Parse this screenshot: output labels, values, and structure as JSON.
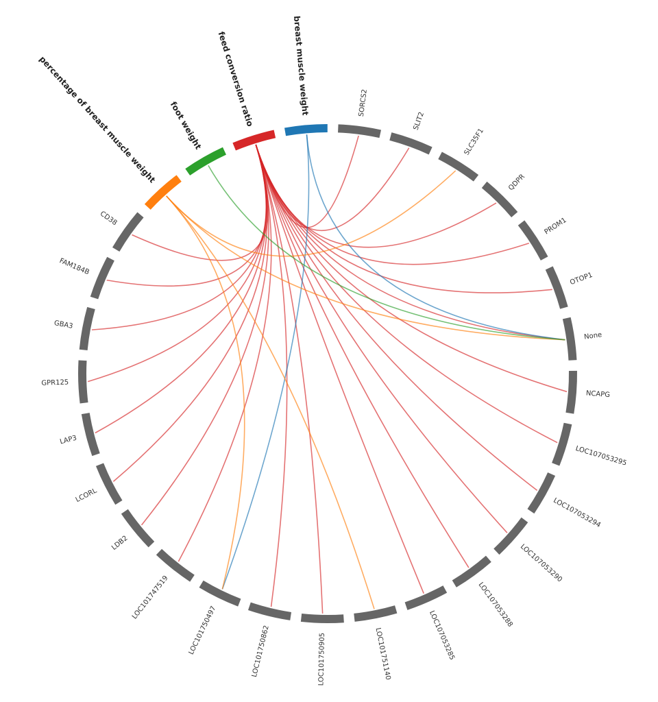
{
  "nodes": [
    {
      "label": "breast muscle weight",
      "color": "#1f77b4",
      "trait": true
    },
    {
      "label": "SORCS2",
      "color": "#666666"
    },
    {
      "label": "SLIT2",
      "color": "#666666"
    },
    {
      "label": "SLC35F1",
      "color": "#666666"
    },
    {
      "label": "QDPR",
      "color": "#666666"
    },
    {
      "label": "PROM1",
      "color": "#666666"
    },
    {
      "label": "OTOP1",
      "color": "#666666"
    },
    {
      "label": "None",
      "color": "#666666"
    },
    {
      "label": "NCAPG",
      "color": "#666666"
    },
    {
      "label": "LOC107053295",
      "color": "#666666"
    },
    {
      "label": "LOC107053294",
      "color": "#666666"
    },
    {
      "label": "LOC107053290",
      "color": "#666666"
    },
    {
      "label": "LOC107053288",
      "color": "#666666"
    },
    {
      "label": "LOC107053285",
      "color": "#666666"
    },
    {
      "label": "LOC101751140",
      "color": "#666666"
    },
    {
      "label": "LOC101750905",
      "color": "#666666"
    },
    {
      "label": "LOC101750862",
      "color": "#666666"
    },
    {
      "label": "LOC101750497",
      "color": "#666666"
    },
    {
      "label": "LOC101747519",
      "color": "#666666"
    },
    {
      "label": "LDB2",
      "color": "#666666"
    },
    {
      "label": "LCORL",
      "color": "#666666"
    },
    {
      "label": "LAP3",
      "color": "#666666"
    },
    {
      "label": "GPR125",
      "color": "#666666"
    },
    {
      "label": "GBA3",
      "color": "#666666"
    },
    {
      "label": "FAM184B",
      "color": "#666666"
    },
    {
      "label": "CD38",
      "color": "#666666"
    },
    {
      "label": "percentage of breast muscle weight",
      "color": "#ff7f0e",
      "trait": true
    },
    {
      "label": "foot weight",
      "color": "#2ca02c",
      "trait": true
    },
    {
      "label": "feed conversion ratio",
      "color": "#d62728",
      "trait": true
    }
  ],
  "links": [
    {
      "source": "feed conversion ratio",
      "target": "SORCS2"
    },
    {
      "source": "feed conversion ratio",
      "target": "SLIT2"
    },
    {
      "source": "feed conversion ratio",
      "target": "QDPR"
    },
    {
      "source": "feed conversion ratio",
      "target": "PROM1"
    },
    {
      "source": "feed conversion ratio",
      "target": "OTOP1"
    },
    {
      "source": "feed conversion ratio",
      "target": "None"
    },
    {
      "source": "feed conversion ratio",
      "target": "NCAPG"
    },
    {
      "source": "feed conversion ratio",
      "target": "LOC107053295"
    },
    {
      "source": "feed conversion ratio",
      "target": "LOC107053294"
    },
    {
      "source": "feed conversion ratio",
      "target": "LOC107053290"
    },
    {
      "source": "feed conversion ratio",
      "target": "LOC107053288"
    },
    {
      "source": "feed conversion ratio",
      "target": "LOC107053285"
    },
    {
      "source": "feed conversion ratio",
      "target": "LOC101750905"
    },
    {
      "source": "feed conversion ratio",
      "target": "LOC101750862"
    },
    {
      "source": "feed conversion ratio",
      "target": "LOC101747519"
    },
    {
      "source": "feed conversion ratio",
      "target": "LDB2"
    },
    {
      "source": "feed conversion ratio",
      "target": "LCORL"
    },
    {
      "source": "feed conversion ratio",
      "target": "LAP3"
    },
    {
      "source": "feed conversion ratio",
      "target": "GPR125"
    },
    {
      "source": "feed conversion ratio",
      "target": "GBA3"
    },
    {
      "source": "feed conversion ratio",
      "target": "FAM184B"
    },
    {
      "source": "feed conversion ratio",
      "target": "CD38"
    },
    {
      "source": "breast muscle weight",
      "target": "None"
    },
    {
      "source": "breast muscle weight",
      "target": "LOC101750497"
    },
    {
      "source": "percentage of breast muscle weight",
      "target": "SLC35F1"
    },
    {
      "source": "percentage of breast muscle weight",
      "target": "None"
    },
    {
      "source": "percentage of breast muscle weight",
      "target": "LOC101750497"
    },
    {
      "source": "percentage of breast muscle weight",
      "target": "LOC101751140"
    },
    {
      "source": "foot weight",
      "target": "None"
    }
  ]
}
